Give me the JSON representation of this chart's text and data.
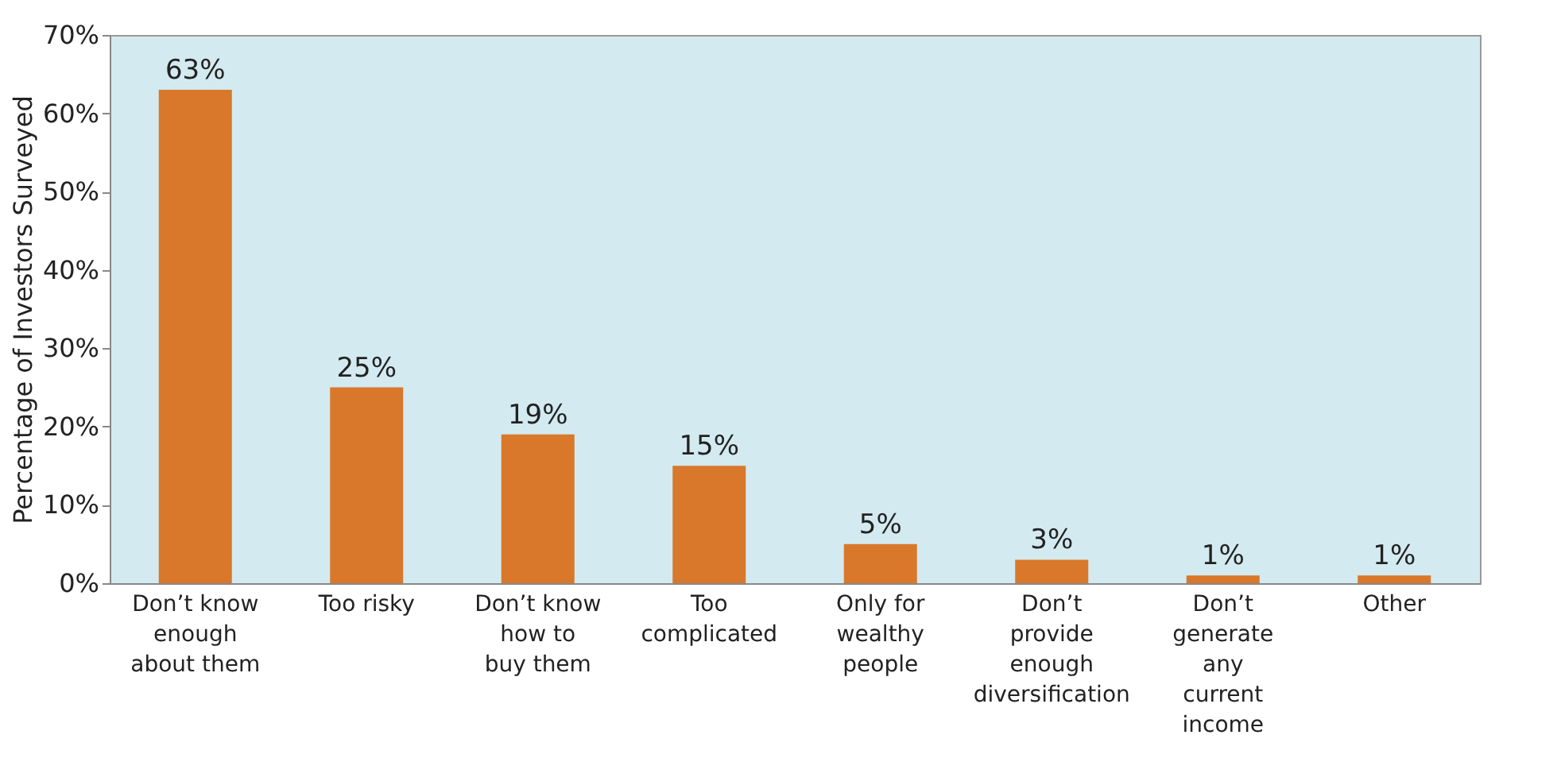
{
  "chart_data": {
    "type": "bar",
    "ylabel": "Percentage of Investors Surveyed",
    "categories": [
      "Don’t know\nenough\nabout them",
      "Too risky",
      "Don’t know\nhow to\nbuy them",
      "Too\ncomplicated",
      "Only for\nwealthy\npeople",
      "Don’t\nprovide\nenough\ndiversification",
      "Don’t\ngenerate\nany\ncurrent\nincome",
      "Other"
    ],
    "values": [
      63,
      25,
      19,
      15,
      5,
      3,
      1,
      1
    ],
    "value_labels": [
      "63%",
      "25%",
      "19%",
      "15%",
      "5%",
      "3%",
      "1%",
      "1%"
    ],
    "color": "#d9782a",
    "ylim": [
      0,
      70
    ],
    "yticks": [
      {
        "value": 0,
        "label": "0%"
      },
      {
        "value": 10,
        "label": "10%"
      },
      {
        "value": 20,
        "label": "20%"
      },
      {
        "value": 30,
        "label": "30%"
      },
      {
        "value": 40,
        "label": "40%"
      },
      {
        "value": 50,
        "label": "50%"
      },
      {
        "value": 60,
        "label": "60%"
      },
      {
        "value": 70,
        "label": "70%"
      }
    ],
    "grid": false
  }
}
